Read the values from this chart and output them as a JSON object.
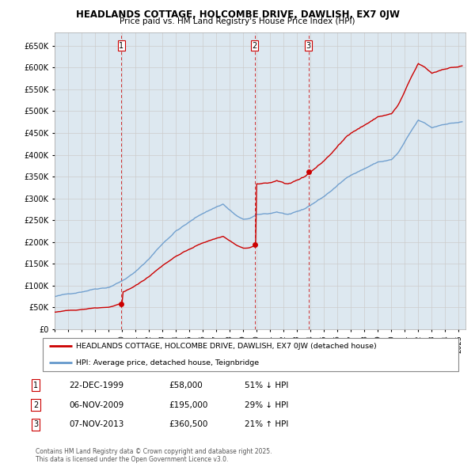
{
  "title": "HEADLANDS COTTAGE, HOLCOMBE DRIVE, DAWLISH, EX7 0JW",
  "subtitle": "Price paid vs. HM Land Registry's House Price Index (HPI)",
  "red_label": "HEADLANDS COTTAGE, HOLCOMBE DRIVE, DAWLISH, EX7 0JW (detached house)",
  "blue_label": "HPI: Average price, detached house, Teignbridge",
  "transactions": [
    {
      "num": 1,
      "date": "22-DEC-1999",
      "price": 58000,
      "pct": "51%",
      "dir": "↓",
      "year": 1999.96
    },
    {
      "num": 2,
      "date": "06-NOV-2009",
      "price": 195000,
      "pct": "29%",
      "dir": "↓",
      "year": 2009.85
    },
    {
      "num": 3,
      "date": "07-NOV-2013",
      "price": 360500,
      "pct": "21%",
      "dir": "↑",
      "year": 2013.85
    }
  ],
  "footer": "Contains HM Land Registry data © Crown copyright and database right 2025.\nThis data is licensed under the Open Government Licence v3.0.",
  "ylim": [
    0,
    680000
  ],
  "yticks": [
    0,
    50000,
    100000,
    150000,
    200000,
    250000,
    300000,
    350000,
    400000,
    450000,
    500000,
    550000,
    600000,
    650000
  ],
  "red_color": "#cc0000",
  "blue_color": "#6699cc",
  "vline_color": "#cc0000",
  "grid_color": "#cccccc",
  "plot_bg": "#dde8f0",
  "bg_color": "#ffffff"
}
